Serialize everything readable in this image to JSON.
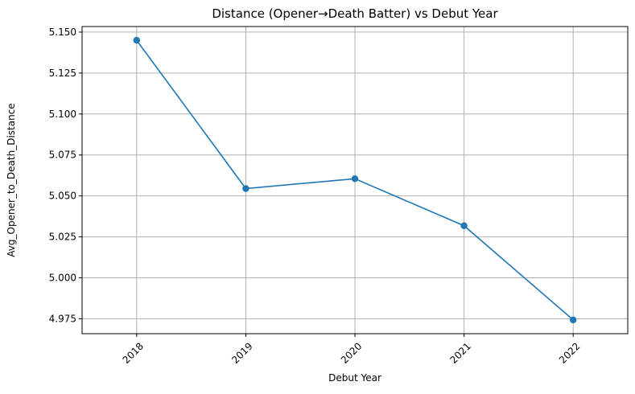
{
  "chart_data": {
    "type": "line",
    "title": "Distance (Opener→Death Batter) vs Debut Year",
    "xlabel": "Debut Year",
    "ylabel": "Avg_Opener_to_Death_Distance",
    "x": [
      "2018",
      "2019",
      "2020",
      "2021",
      "2022"
    ],
    "series": [
      {
        "values": [
          5.145,
          5.0545,
          5.0605,
          5.0318,
          4.9743
        ],
        "color": "#1f77b4"
      }
    ],
    "ylim": [
      4.9659,
      5.1534
    ],
    "yticks": [
      4.975,
      5.0,
      5.025,
      5.05,
      5.075,
      5.1,
      5.125,
      5.15
    ],
    "ytick_labels": [
      "4.975",
      "5.000",
      "5.025",
      "5.050",
      "5.075",
      "5.100",
      "5.125",
      "5.150"
    ],
    "grid": true,
    "markers": true,
    "xtick_rotation": 45
  }
}
